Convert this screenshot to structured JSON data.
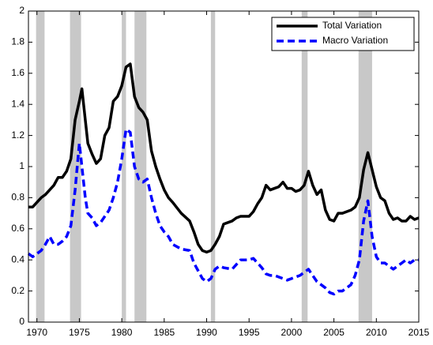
{
  "chart_data": {
    "type": "line",
    "x": [
      1969,
      1969.5,
      1970,
      1970.5,
      1971,
      1971.5,
      1972,
      1972.5,
      1973,
      1973.5,
      1974,
      1974.5,
      1975,
      1975.3,
      1975.7,
      1976,
      1976.5,
      1977,
      1977.5,
      1978,
      1978.5,
      1979,
      1979.5,
      1980,
      1980.5,
      1981,
      1981.5,
      1982,
      1982.5,
      1983,
      1983.5,
      1984,
      1984.5,
      1985,
      1985.5,
      1986,
      1987,
      1988,
      1988.5,
      1989,
      1989.5,
      1990,
      1990.5,
      1991,
      1991.5,
      1992,
      1993,
      1993.5,
      1994,
      1995,
      1995.5,
      1996,
      1996.5,
      1997,
      1997.5,
      1998,
      1998.5,
      1999,
      1999.5,
      2000,
      2000.5,
      2001,
      2001.5,
      2002,
      2002.5,
      2003,
      2003.5,
      2004,
      2004.5,
      2005,
      2005.5,
      2006,
      2007,
      2007.5,
      2008,
      2008.5,
      2009,
      2009.5,
      2010,
      2010.5,
      2011,
      2011.5,
      2012,
      2012.5,
      2013,
      2013.5,
      2014,
      2014.5,
      2015
    ],
    "series": [
      {
        "name": "Total Variation",
        "color": "#000000",
        "dashed": false,
        "values": [
          0.74,
          0.74,
          0.77,
          0.8,
          0.82,
          0.85,
          0.88,
          0.93,
          0.93,
          0.97,
          1.05,
          1.3,
          1.42,
          1.5,
          1.3,
          1.15,
          1.08,
          1.02,
          1.05,
          1.2,
          1.25,
          1.42,
          1.45,
          1.52,
          1.64,
          1.66,
          1.45,
          1.38,
          1.35,
          1.3,
          1.1,
          1.0,
          0.92,
          0.85,
          0.8,
          0.77,
          0.7,
          0.65,
          0.58,
          0.5,
          0.46,
          0.45,
          0.46,
          0.5,
          0.55,
          0.63,
          0.65,
          0.67,
          0.68,
          0.68,
          0.71,
          0.76,
          0.8,
          0.88,
          0.85,
          0.86,
          0.87,
          0.9,
          0.86,
          0.86,
          0.84,
          0.85,
          0.88,
          0.97,
          0.88,
          0.82,
          0.85,
          0.72,
          0.66,
          0.65,
          0.7,
          0.7,
          0.72,
          0.74,
          0.8,
          0.98,
          1.09,
          0.98,
          0.87,
          0.8,
          0.78,
          0.7,
          0.66,
          0.67,
          0.65,
          0.65,
          0.68,
          0.66,
          0.67
        ]
      },
      {
        "name": "Macro Variation",
        "color": "#0000ff",
        "dashed": true,
        "values": [
          0.44,
          0.42,
          0.44,
          0.46,
          0.5,
          0.55,
          0.5,
          0.5,
          0.52,
          0.55,
          0.62,
          0.85,
          1.15,
          1.0,
          0.8,
          0.7,
          0.67,
          0.62,
          0.64,
          0.68,
          0.72,
          0.8,
          0.9,
          1.05,
          1.24,
          1.22,
          1.0,
          0.92,
          0.9,
          0.92,
          0.8,
          0.7,
          0.62,
          0.58,
          0.55,
          0.5,
          0.47,
          0.46,
          0.38,
          0.33,
          0.28,
          0.26,
          0.28,
          0.34,
          0.36,
          0.35,
          0.34,
          0.37,
          0.4,
          0.4,
          0.41,
          0.38,
          0.35,
          0.31,
          0.3,
          0.3,
          0.29,
          0.28,
          0.27,
          0.28,
          0.29,
          0.3,
          0.32,
          0.34,
          0.3,
          0.26,
          0.24,
          0.22,
          0.19,
          0.18,
          0.2,
          0.2,
          0.24,
          0.3,
          0.4,
          0.65,
          0.78,
          0.55,
          0.42,
          0.38,
          0.38,
          0.36,
          0.34,
          0.36,
          0.38,
          0.4,
          0.38,
          0.4,
          0.4
        ]
      }
    ],
    "shaded_periods": [
      [
        1969.9,
        1970.9
      ],
      [
        1973.9,
        1975.2
      ],
      [
        1980.0,
        1980.5
      ],
      [
        1981.5,
        1982.9
      ],
      [
        1990.5,
        1991.0
      ],
      [
        2001.2,
        2001.9
      ],
      [
        2007.9,
        2009.5
      ]
    ],
    "shade_color": "#c8c8c8",
    "xlim": [
      1969,
      2015
    ],
    "xticks": [
      1970,
      1975,
      1980,
      1985,
      1990,
      1995,
      2000,
      2005,
      2010,
      2015
    ],
    "ylim": [
      0,
      2
    ],
    "yticks": [
      0,
      0.2,
      0.4,
      0.6,
      0.8,
      1,
      1.2,
      1.4,
      1.6,
      1.8,
      2
    ],
    "grid": false,
    "legend": "upper right"
  }
}
